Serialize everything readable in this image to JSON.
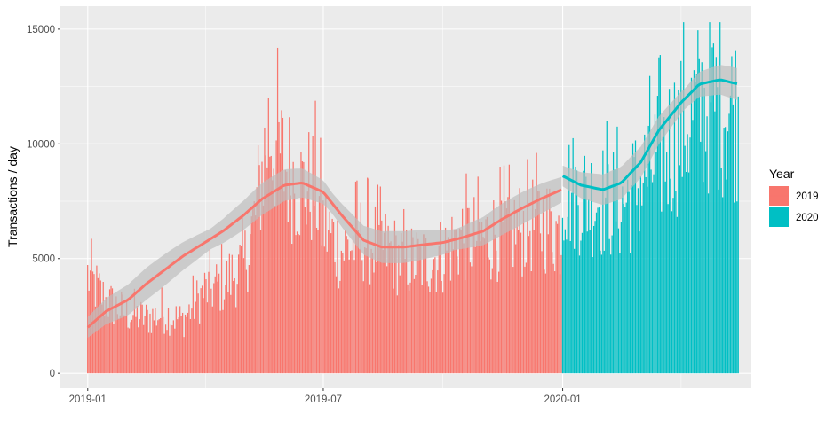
{
  "chart_data": {
    "type": "bar",
    "ylabel": "Transactions / day",
    "xlabel": "",
    "ylim": [
      -650,
      16000
    ],
    "xlim": [
      "2018-12-11",
      "2020-05-25"
    ],
    "y_ticks": [
      0,
      5000,
      10000,
      15000
    ],
    "y_tick_labels": [
      "0",
      "5000",
      "10000",
      "15000"
    ],
    "x_ticks": [
      "2019-01-01",
      "2019-07-01",
      "2020-01-01"
    ],
    "x_tick_labels": [
      "2019-01",
      "2019-07",
      "2020-01"
    ],
    "grid": true,
    "legend": {
      "title": "Year",
      "position": "right",
      "entries": [
        "2019",
        "2020"
      ]
    },
    "colors": {
      "2019": "#F8766D",
      "2020": "#00BFC4",
      "panel": "#EBEBEB",
      "grid": "#FFFFFF",
      "ribbon": "#BEBEBE"
    },
    "series": [
      {
        "name": "2019",
        "period": [
          "2019-01-01",
          "2019-12-31"
        ],
        "approximate_daily_values": [
          [
            "2019-01-01",
            4600
          ],
          [
            "2019-01-15",
            3400
          ],
          [
            "2019-02-01",
            2800
          ],
          [
            "2019-02-15",
            2600
          ],
          [
            "2019-03-01",
            2800
          ],
          [
            "2019-03-15",
            2500
          ],
          [
            "2019-04-01",
            3900
          ],
          [
            "2019-04-15",
            4200
          ],
          [
            "2019-05-01",
            5100
          ],
          [
            "2019-05-10",
            7500
          ],
          [
            "2019-05-20",
            11500
          ],
          [
            "2019-06-01",
            9800
          ],
          [
            "2019-06-15",
            8700
          ],
          [
            "2019-06-25",
            8800
          ],
          [
            "2019-07-01",
            7000
          ],
          [
            "2019-07-15",
            5800
          ],
          [
            "2019-08-01",
            6400
          ],
          [
            "2019-08-15",
            6000
          ],
          [
            "2019-09-01",
            5300
          ],
          [
            "2019-09-15",
            5300
          ],
          [
            "2019-10-01",
            5600
          ],
          [
            "2019-10-15",
            6500
          ],
          [
            "2019-11-01",
            6300
          ],
          [
            "2019-11-15",
            6700
          ],
          [
            "2019-12-01",
            6800
          ],
          [
            "2019-12-15",
            7200
          ],
          [
            "2019-12-31",
            6600
          ]
        ],
        "smooth": [
          [
            "2019-01-01",
            2000
          ],
          [
            "2019-01-15",
            2700
          ],
          [
            "2019-02-01",
            3200
          ],
          [
            "2019-02-15",
            3900
          ],
          [
            "2019-03-01",
            4500
          ],
          [
            "2019-03-15",
            5100
          ],
          [
            "2019-04-01",
            5700
          ],
          [
            "2019-04-15",
            6200
          ],
          [
            "2019-05-01",
            6900
          ],
          [
            "2019-05-15",
            7600
          ],
          [
            "2019-06-01",
            8200
          ],
          [
            "2019-06-15",
            8300
          ],
          [
            "2019-07-01",
            7900
          ],
          [
            "2019-07-15",
            6900
          ],
          [
            "2019-08-01",
            5800
          ],
          [
            "2019-08-15",
            5500
          ],
          [
            "2019-09-01",
            5500
          ],
          [
            "2019-09-15",
            5600
          ],
          [
            "2019-10-01",
            5700
          ],
          [
            "2019-10-15",
            5900
          ],
          [
            "2019-11-01",
            6200
          ],
          [
            "2019-11-15",
            6700
          ],
          [
            "2019-12-01",
            7200
          ],
          [
            "2019-12-15",
            7600
          ],
          [
            "2019-12-31",
            8000
          ]
        ]
      },
      {
        "name": "2020",
        "period": [
          "2020-01-01",
          "2020-05-15"
        ],
        "approximate_daily_values": [
          [
            "2020-01-01",
            8800
          ],
          [
            "2020-01-15",
            8400
          ],
          [
            "2020-02-01",
            8200
          ],
          [
            "2020-02-15",
            7900
          ],
          [
            "2020-03-01",
            9000
          ],
          [
            "2020-03-15",
            10200
          ],
          [
            "2020-04-01",
            11500
          ],
          [
            "2020-04-15",
            12500
          ],
          [
            "2020-05-01",
            12800
          ],
          [
            "2020-05-15",
            12200
          ]
        ],
        "smooth": [
          [
            "2020-01-01",
            8600
          ],
          [
            "2020-01-15",
            8200
          ],
          [
            "2020-02-01",
            8000
          ],
          [
            "2020-02-15",
            8300
          ],
          [
            "2020-03-01",
            9200
          ],
          [
            "2020-03-15",
            10600
          ],
          [
            "2020-04-01",
            11800
          ],
          [
            "2020-04-15",
            12600
          ],
          [
            "2020-05-01",
            12800
          ],
          [
            "2020-05-15",
            12600
          ]
        ]
      }
    ]
  }
}
